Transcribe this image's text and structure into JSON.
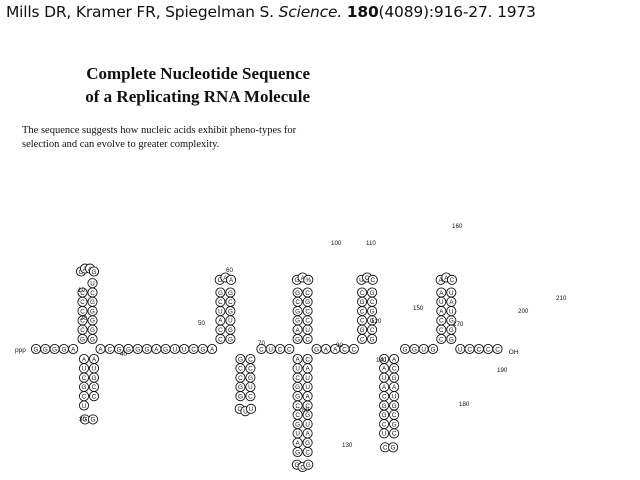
{
  "citation": {
    "authors": "Mills DR, Kramer FR, Spiegelman S.",
    "journal": "Science.",
    "volume": "180",
    "rest": "(4089):916-27. 1973"
  },
  "title_line1": "Complete Nucleotide Sequence",
  "title_line2": "of a Replicating RNA Molecule",
  "abstract": "The sequence suggests how nucleic acids exhibit pheno-types for selection and can evolve to greater complexity.",
  "diagram": {
    "five_prime_label": "ppp",
    "three_prime_label": "OH",
    "backbone_left": "GGGGA",
    "backbone_mid1": "ACGGGGAGUUCGA",
    "backbone_mid2": "CUCC",
    "backbone_mid3": "GAACC",
    "backbone_mid4": "GGUG",
    "backbone_right": "UCCCC",
    "hairpin1": {
      "left": "GCCCCC",
      "right": "GGGGGCU",
      "loop": [
        "G",
        "A",
        "A",
        "G"
      ]
    },
    "hairpin2": {
      "left": "CCAUCG",
      "right": "GGUGCG",
      "loop": [
        "C",
        "A",
        "A"
      ]
    },
    "hairpin3": {
      "left": "CCCAUA",
      "right": "GGGUAU",
      "loop": [
        "A",
        "A",
        "C"
      ]
    },
    "hairpin4": {
      "left": "GAGGCG",
      "right": "CUCCGC",
      "loop": [
        "G",
        "A",
        "%"
      ]
    },
    "hairpin5": {
      "left": "CGCCGC",
      "right": "GCGGCG",
      "loop": [
        "U",
        "C",
        "C"
      ]
    },
    "lower1": [
      "A",
      "U",
      "C",
      "G",
      "C",
      "U",
      "A",
      "U",
      "G",
      "C",
      "C",
      "G",
      "G"
    ],
    "lower2": [
      "G",
      "C",
      "C",
      "G",
      "G",
      "C",
      "C",
      "G",
      "U",
      "C",
      "C",
      "U",
      "U"
    ],
    "lower3": [
      "A",
      "U",
      "C",
      "G",
      "G",
      "C",
      "C",
      "G",
      "U",
      "A",
      "G",
      "C",
      "A",
      "U",
      "U",
      "A",
      "C",
      "G",
      "U",
      "A",
      "G",
      "C",
      "G",
      "C",
      "G"
    ],
    "lower4": [
      "U",
      "A",
      "U",
      "A",
      "C",
      "G",
      "G",
      "C",
      "U",
      "A",
      "C",
      "G",
      "A",
      "U",
      "G",
      "C",
      "G",
      "C",
      "C",
      "G"
    ],
    "numbers": [
      "10",
      "20",
      "30",
      "40",
      "50",
      "60",
      "70",
      "80",
      "90",
      "100",
      "110",
      "120",
      "130",
      "140",
      "150",
      "160",
      "170",
      "180",
      "190",
      "200",
      "210"
    ]
  },
  "colors": {
    "ink": "#111111",
    "background": "#ffffff"
  }
}
